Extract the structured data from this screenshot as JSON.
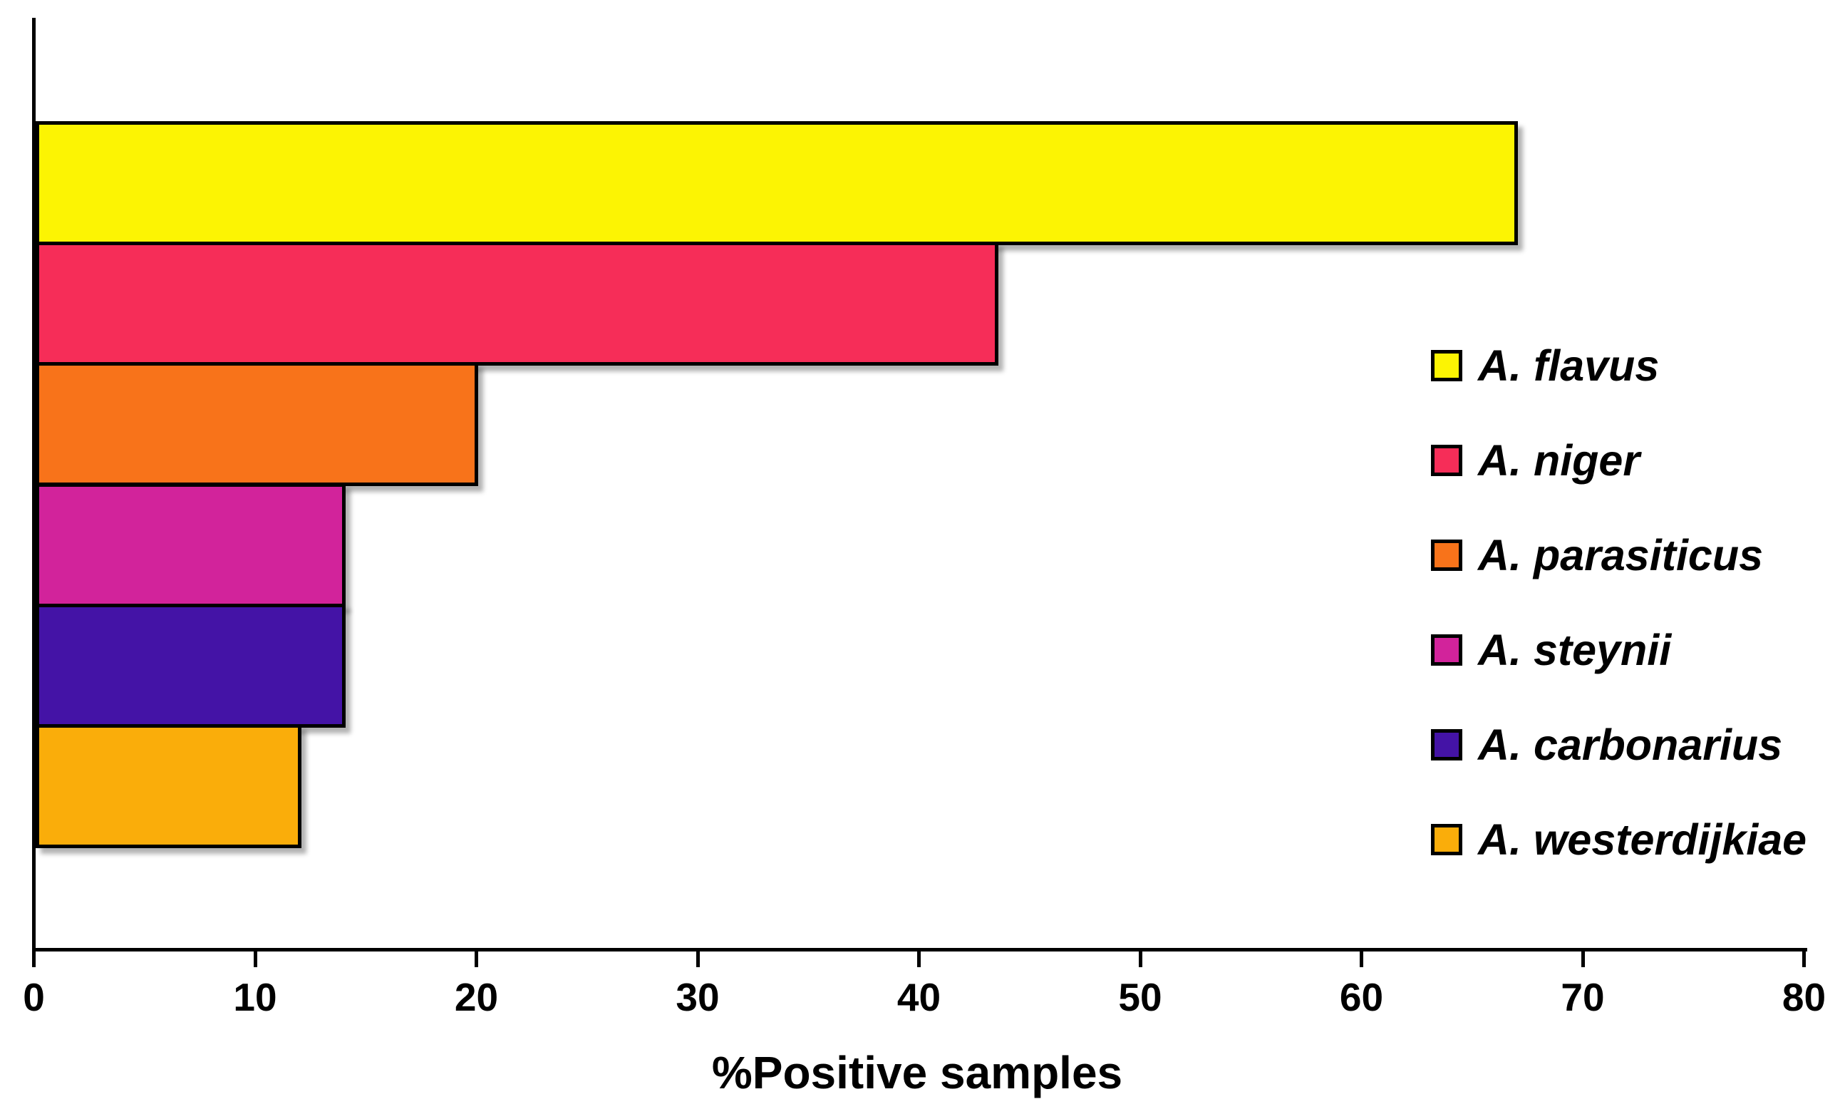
{
  "chart_data": {
    "type": "bar",
    "orientation": "horizontal",
    "title": "",
    "xlabel": "%Positive samples",
    "ylabel": "",
    "xlim": [
      0,
      80
    ],
    "xticks": [
      0,
      10,
      20,
      30,
      40,
      50,
      60,
      70,
      80
    ],
    "grid": false,
    "legend_position": "right",
    "categories": [
      "A. flavus",
      "A. niger",
      "A. parasiticus",
      "A. steynii",
      "A. carbonarius",
      "A. westerdijkiae"
    ],
    "values": [
      67,
      43.5,
      20,
      14,
      14,
      12
    ],
    "series": [
      {
        "name": "A. flavus",
        "value": 67,
        "color": "#FCF403"
      },
      {
        "name": "A. niger",
        "value": 43.5,
        "color": "#F62D58"
      },
      {
        "name": "A. parasiticus",
        "value": 20,
        "color": "#F8731A"
      },
      {
        "name": "A. steynii",
        "value": 14,
        "color": "#D2239B"
      },
      {
        "name": "A. carbonarius",
        "value": 14,
        "color": "#4413A6"
      },
      {
        "name": "A. westerdijkiae",
        "value": 12,
        "color": "#FAAD0A"
      }
    ],
    "axis_color": "#000000",
    "background_color": "#FFFFFF"
  }
}
